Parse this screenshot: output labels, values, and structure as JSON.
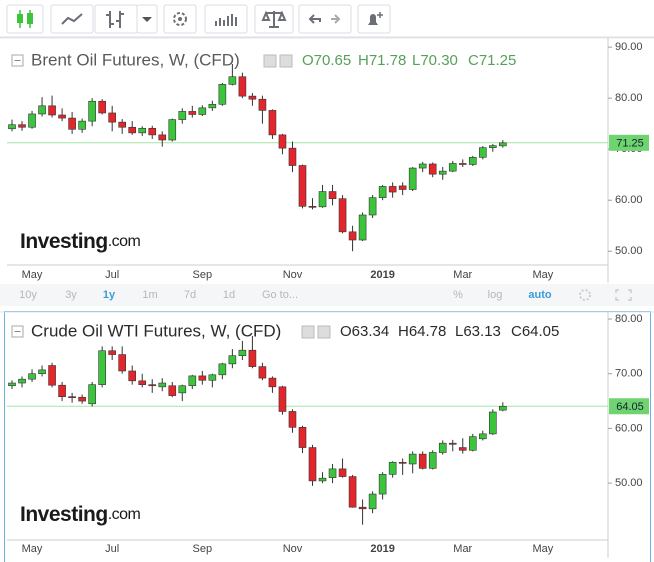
{
  "range_bar": [
    "10y",
    "3y",
    "1y",
    "1m",
    "7d",
    "1d",
    "Go to...",
    "%",
    "log",
    "auto"
  ],
  "chart_data": [
    {
      "type": "candlestick",
      "title": "Brent Oil Futures, W, (CFD)",
      "legend_ohlc": [
        "O70.65",
        "H71.78",
        "L70.30",
        "C71.25"
      ],
      "watermark": [
        "Investing",
        ".com"
      ],
      "up_color": "#3cc43c",
      "down_color": "#e2262b",
      "grid": false,
      "categories": [
        null,
        null,
        "May",
        null,
        null,
        null,
        null,
        null,
        null,
        null,
        "Jul",
        null,
        null,
        null,
        null,
        null,
        null,
        null,
        null,
        "Sep",
        null,
        null,
        null,
        null,
        null,
        null,
        null,
        null,
        "Nov",
        null,
        null,
        null,
        null,
        null,
        null,
        null,
        null,
        "2019",
        null,
        null,
        null,
        null,
        null,
        null,
        null,
        "Mar",
        null,
        null,
        null,
        null,
        null,
        null,
        null,
        "May",
        null,
        null,
        null,
        null,
        null,
        null
      ],
      "open": [
        74.0,
        74.8,
        74.3,
        76.9,
        78.5,
        76.7,
        76.1,
        73.9,
        75.5,
        79.4,
        77.1,
        75.3,
        74.3,
        73.2,
        74.1,
        72.8,
        71.8,
        75.8,
        77.4,
        76.8,
        78.1,
        78.8,
        82.7,
        84.2,
        80.4,
        79.8,
        77.6,
        72.8,
        70.2,
        66.8,
        58.8,
        58.7,
        61.7,
        60.3,
        53.8,
        52.2,
        57.1,
        60.5,
        62.7,
        62.8,
        62.1,
        66.3,
        67.1,
        65.1,
        65.7,
        67.2,
        67.0,
        68.4,
        70.3,
        70.65,
        null,
        null,
        null,
        null,
        null,
        null,
        null,
        null,
        null,
        null
      ],
      "high": [
        75.8,
        75.5,
        77.5,
        80.2,
        80.5,
        78.0,
        77.3,
        76.0,
        80.0,
        79.8,
        78.5,
        75.9,
        75.5,
        74.5,
        74.6,
        73.5,
        76.0,
        78.0,
        78.5,
        78.6,
        79.5,
        83.0,
        86.7,
        85.0,
        81.0,
        80.5,
        77.8,
        73.0,
        71.5,
        67.0,
        60.4,
        63.0,
        63.0,
        61.0,
        55.0,
        57.6,
        61.0,
        63.0,
        63.5,
        63.5,
        66.5,
        67.5,
        67.4,
        66.5,
        67.7,
        68.0,
        68.7,
        70.6,
        71.0,
        71.78,
        null,
        null,
        null,
        null,
        null,
        null,
        null,
        null,
        null,
        null
      ],
      "low": [
        73.5,
        73.6,
        74.0,
        76.4,
        76.2,
        75.5,
        73.0,
        73.2,
        74.5,
        76.8,
        73.5,
        73.0,
        72.8,
        72.6,
        72.0,
        70.5,
        71.5,
        75.0,
        76.2,
        76.5,
        77.5,
        78.5,
        82.5,
        80.0,
        78.5,
        75.0,
        72.0,
        69.0,
        65.5,
        58.4,
        58.2,
        58.5,
        59.0,
        53.5,
        50.0,
        52.0,
        56.5,
        60.0,
        60.5,
        61.0,
        61.8,
        65.5,
        64.5,
        64.0,
        65.5,
        66.5,
        66.7,
        68.0,
        69.5,
        70.3,
        null,
        null,
        null,
        null,
        null,
        null,
        null,
        null,
        null,
        null
      ],
      "close": [
        74.8,
        74.3,
        76.9,
        78.5,
        76.7,
        76.1,
        73.9,
        75.5,
        79.4,
        77.1,
        75.3,
        74.3,
        73.2,
        74.1,
        72.8,
        71.8,
        75.8,
        77.4,
        76.8,
        78.1,
        78.8,
        82.7,
        84.2,
        80.4,
        79.8,
        77.6,
        72.8,
        70.2,
        66.8,
        58.8,
        58.7,
        61.7,
        60.3,
        53.8,
        52.2,
        57.1,
        60.5,
        62.7,
        61.6,
        62.1,
        66.3,
        67.1,
        65.1,
        65.7,
        67.2,
        67.0,
        68.4,
        70.3,
        70.7,
        71.25,
        null,
        null,
        null,
        null,
        null,
        null,
        null,
        null,
        null,
        null
      ],
      "ylim": [
        47.3,
        91.4
      ],
      "yticks": [
        {
          "value": 50,
          "label": "50.00"
        },
        {
          "value": 60,
          "label": "60.00"
        },
        {
          "value": 70,
          "label": "70.00"
        },
        {
          "value": 80,
          "label": "80.00"
        },
        {
          "value": 90,
          "label": "90.00"
        }
      ],
      "last_price": {
        "value": 71.25,
        "label": "71.25"
      }
    },
    {
      "type": "candlestick",
      "title": "Crude Oil WTI Futures, W, (CFD)",
      "legend_ohlc": [
        "O63.34",
        "H64.78",
        "L63.13",
        "C64.05"
      ],
      "watermark": [
        "Investing",
        ".com"
      ],
      "up_color": "#3cc43c",
      "down_color": "#e2262b",
      "grid": false,
      "categories": [
        null,
        null,
        "May",
        null,
        null,
        null,
        null,
        null,
        null,
        null,
        "Jul",
        null,
        null,
        null,
        null,
        null,
        null,
        null,
        null,
        "Sep",
        null,
        null,
        null,
        null,
        null,
        null,
        null,
        null,
        "Nov",
        null,
        null,
        null,
        null,
        null,
        null,
        null,
        null,
        "2019",
        null,
        null,
        null,
        null,
        null,
        null,
        null,
        "Mar",
        null,
        null,
        null,
        null,
        null,
        null,
        null,
        "May",
        null,
        null,
        null,
        null,
        null,
        null
      ],
      "open": [
        67.8,
        68.3,
        69.0,
        70.0,
        71.5,
        67.9,
        65.8,
        65.7,
        64.5,
        68.0,
        74.2,
        73.5,
        70.5,
        68.7,
        68.0,
        67.6,
        67.8,
        66.5,
        67.8,
        69.6,
        68.8,
        69.8,
        71.8,
        73.3,
        74.3,
        71.3,
        69.2,
        67.6,
        63.1,
        60.2,
        56.5,
        50.4,
        51.0,
        52.6,
        51.2,
        45.6,
        45.3,
        48.0,
        51.6,
        53.8,
        53.5,
        55.3,
        52.7,
        55.6,
        57.3,
        56.5,
        56.0,
        58.1,
        59.0,
        63.34,
        null,
        null,
        null,
        null,
        null,
        null,
        null,
        null,
        null,
        null
      ],
      "high": [
        68.8,
        69.5,
        70.8,
        71.5,
        72.0,
        68.5,
        66.5,
        66.2,
        68.5,
        75.0,
        75.0,
        75.0,
        71.5,
        70.0,
        69.0,
        69.2,
        68.5,
        68.0,
        69.8,
        70.5,
        70.0,
        72.0,
        74.5,
        76.0,
        76.9,
        72.0,
        69.5,
        67.8,
        63.5,
        60.5,
        57.0,
        52.0,
        53.5,
        54.5,
        51.5,
        47.0,
        48.5,
        52.0,
        54.0,
        54.5,
        55.8,
        55.8,
        56.0,
        57.8,
        57.9,
        58.2,
        59.0,
        59.6,
        63.5,
        64.78,
        null,
        null,
        null,
        null,
        null,
        null,
        null,
        null,
        null,
        null
      ],
      "low": [
        67.2,
        67.5,
        68.5,
        69.5,
        67.5,
        65.0,
        64.7,
        64.5,
        64.0,
        67.5,
        72.5,
        70.0,
        68.0,
        67.5,
        66.5,
        66.8,
        65.7,
        65.0,
        67.2,
        68.0,
        67.5,
        69.0,
        71.0,
        72.5,
        71.0,
        68.8,
        66.5,
        62.5,
        59.2,
        55.5,
        49.5,
        50.0,
        50.0,
        51.0,
        45.5,
        42.4,
        44.5,
        47.0,
        51.0,
        51.5,
        51.8,
        52.5,
        52.5,
        55.2,
        55.8,
        55.4,
        55.8,
        57.8,
        58.8,
        63.13,
        null,
        null,
        null,
        null,
        null,
        null,
        null,
        null,
        null,
        null
      ],
      "close": [
        68.3,
        69.0,
        70.0,
        70.7,
        67.9,
        65.8,
        65.7,
        65.0,
        68.0,
        74.2,
        73.5,
        70.5,
        68.7,
        68.0,
        67.8,
        68.3,
        66.0,
        67.8,
        69.6,
        68.8,
        69.8,
        71.8,
        73.3,
        74.3,
        71.3,
        69.2,
        67.6,
        63.1,
        60.2,
        56.5,
        50.4,
        50.9,
        52.6,
        51.2,
        45.6,
        45.3,
        48.0,
        51.6,
        53.8,
        53.7,
        55.3,
        52.7,
        55.6,
        57.3,
        57.1,
        56.0,
        58.5,
        59.0,
        63.0,
        64.05,
        null,
        null,
        null,
        null,
        null,
        null,
        null,
        null,
        null,
        null
      ],
      "ylim": [
        39.6,
        81.1
      ],
      "yticks": [
        {
          "value": 50,
          "label": "50.00"
        },
        {
          "value": 60,
          "label": "60.00"
        },
        {
          "value": 70,
          "label": "70.00"
        },
        {
          "value": 80,
          "label": "80.00"
        }
      ],
      "last_price": {
        "value": 64.05,
        "label": "64.05"
      }
    }
  ]
}
